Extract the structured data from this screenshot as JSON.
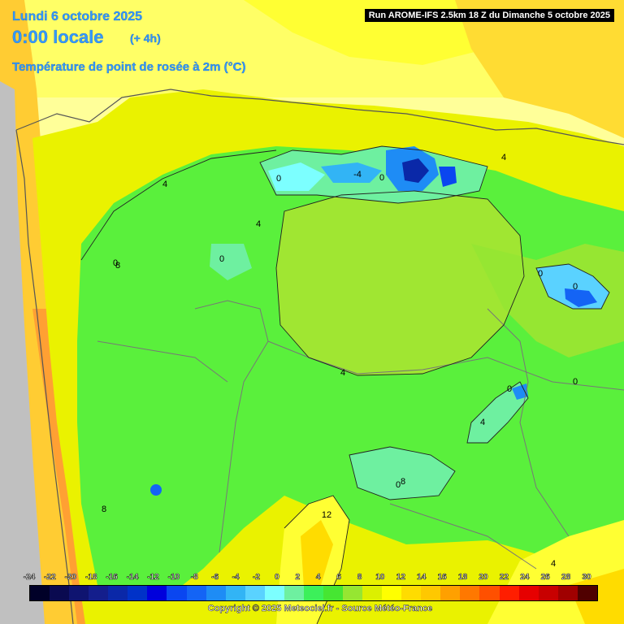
{
  "header": {
    "date": "Lundi 6 octobre 2025",
    "time": "0:00 locale",
    "lead": "(+ 4h)",
    "parameter": "Température de point de rosée à 2m (°C)",
    "run": "Run AROME-IFS 2.5km 18 Z du Dimanche 5 octobre 2025"
  },
  "contour_labels": [
    "4",
    "0",
    "-4",
    "0",
    "4",
    "0",
    "4",
    "0",
    "8",
    "0",
    "4",
    "0",
    "0",
    "4",
    "0",
    "8",
    "12",
    "8",
    "4",
    "0"
  ],
  "scale": {
    "labels": [
      "-24",
      "-22",
      "-20",
      "-18",
      "-16",
      "-14",
      "-12",
      "-10",
      "-8",
      "-6",
      "-4",
      "-2",
      "0",
      "2",
      "4",
      "6",
      "8",
      "10",
      "12",
      "14",
      "16",
      "18",
      "20",
      "22",
      "24",
      "26",
      "28",
      "30"
    ],
    "colors": [
      "#000028",
      "#0a0a50",
      "#0f1470",
      "#141e8c",
      "#0a28a8",
      "#0032c8",
      "#0000dc",
      "#0a46f0",
      "#1464f5",
      "#1e8cf5",
      "#32b4f5",
      "#5ad2ff",
      "#7cffff",
      "#6ef0a0",
      "#3cf05a",
      "#46e632",
      "#96e632",
      "#dcf000",
      "#ffff00",
      "#ffdc00",
      "#ffc800",
      "#ffa000",
      "#ff7800",
      "#ff5000",
      "#ff1e00",
      "#e60000",
      "#c80000",
      "#a00000",
      "#500000"
    ]
  },
  "footer": {
    "copyright": "Copyright © 2025 Meteociel.fr - Source Météo-France"
  }
}
